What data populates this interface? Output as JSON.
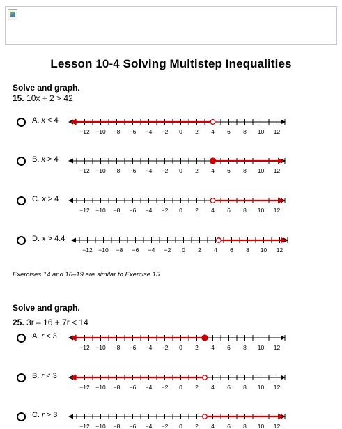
{
  "page_title": "Lesson 10-4 Solving Multistep Inequalities",
  "broken_image_icon": "broken-image-icon",
  "colors": {
    "graph": "#cc0000",
    "axis": "#000000",
    "radio": "#000000"
  },
  "number_line": {
    "ticks": [
      -13,
      -12,
      -11,
      -10,
      -9,
      -8,
      -7,
      -6,
      -5,
      -4,
      -3,
      -2,
      -1,
      0,
      1,
      2,
      3,
      4,
      5,
      6,
      7,
      8,
      9,
      10,
      11,
      12,
      13
    ],
    "labels": [
      "−12",
      "−10",
      "−8",
      "−6",
      "−4",
      "−2",
      "0",
      "2",
      "4",
      "6",
      "8",
      "10",
      "12"
    ],
    "label_values": [
      -12,
      -10,
      -8,
      -6,
      -4,
      -2,
      0,
      2,
      4,
      6,
      8,
      10,
      12
    ]
  },
  "section1": {
    "heading": "Solve and graph.",
    "problem_number": "15.",
    "problem_text": "10x + 2 > 42",
    "choices": [
      {
        "letter": "A.",
        "variable": "x",
        "relation": "< 4",
        "point": 4,
        "open": true,
        "direction": "left"
      },
      {
        "letter": "B.",
        "variable": "x",
        "relation": "> 4",
        "point": 4,
        "open": false,
        "direction": "right"
      },
      {
        "letter": "C.",
        "variable": "x",
        "relation": "> 4",
        "point": 4,
        "open": true,
        "direction": "right"
      },
      {
        "letter": "D.",
        "variable": "x",
        "relation": "> 4.4",
        "point": 4.4,
        "open": true,
        "direction": "right"
      }
    ],
    "note": "Exercises 14 and 16–19 are similar to Exercise 15."
  },
  "section2": {
    "heading": "Solve and graph.",
    "problem_number": "25.",
    "problem_text": "3r – 16 + 7r < 14",
    "choices": [
      {
        "letter": "A.",
        "variable": "r",
        "relation": "< 3",
        "point": 3,
        "open": false,
        "direction": "left"
      },
      {
        "letter": "B.",
        "variable": "r",
        "relation": "< 3",
        "point": 3,
        "open": true,
        "direction": "left"
      },
      {
        "letter": "C.",
        "variable": "r",
        "relation": "> 3",
        "point": 3,
        "open": true,
        "direction": "right"
      }
    ]
  }
}
